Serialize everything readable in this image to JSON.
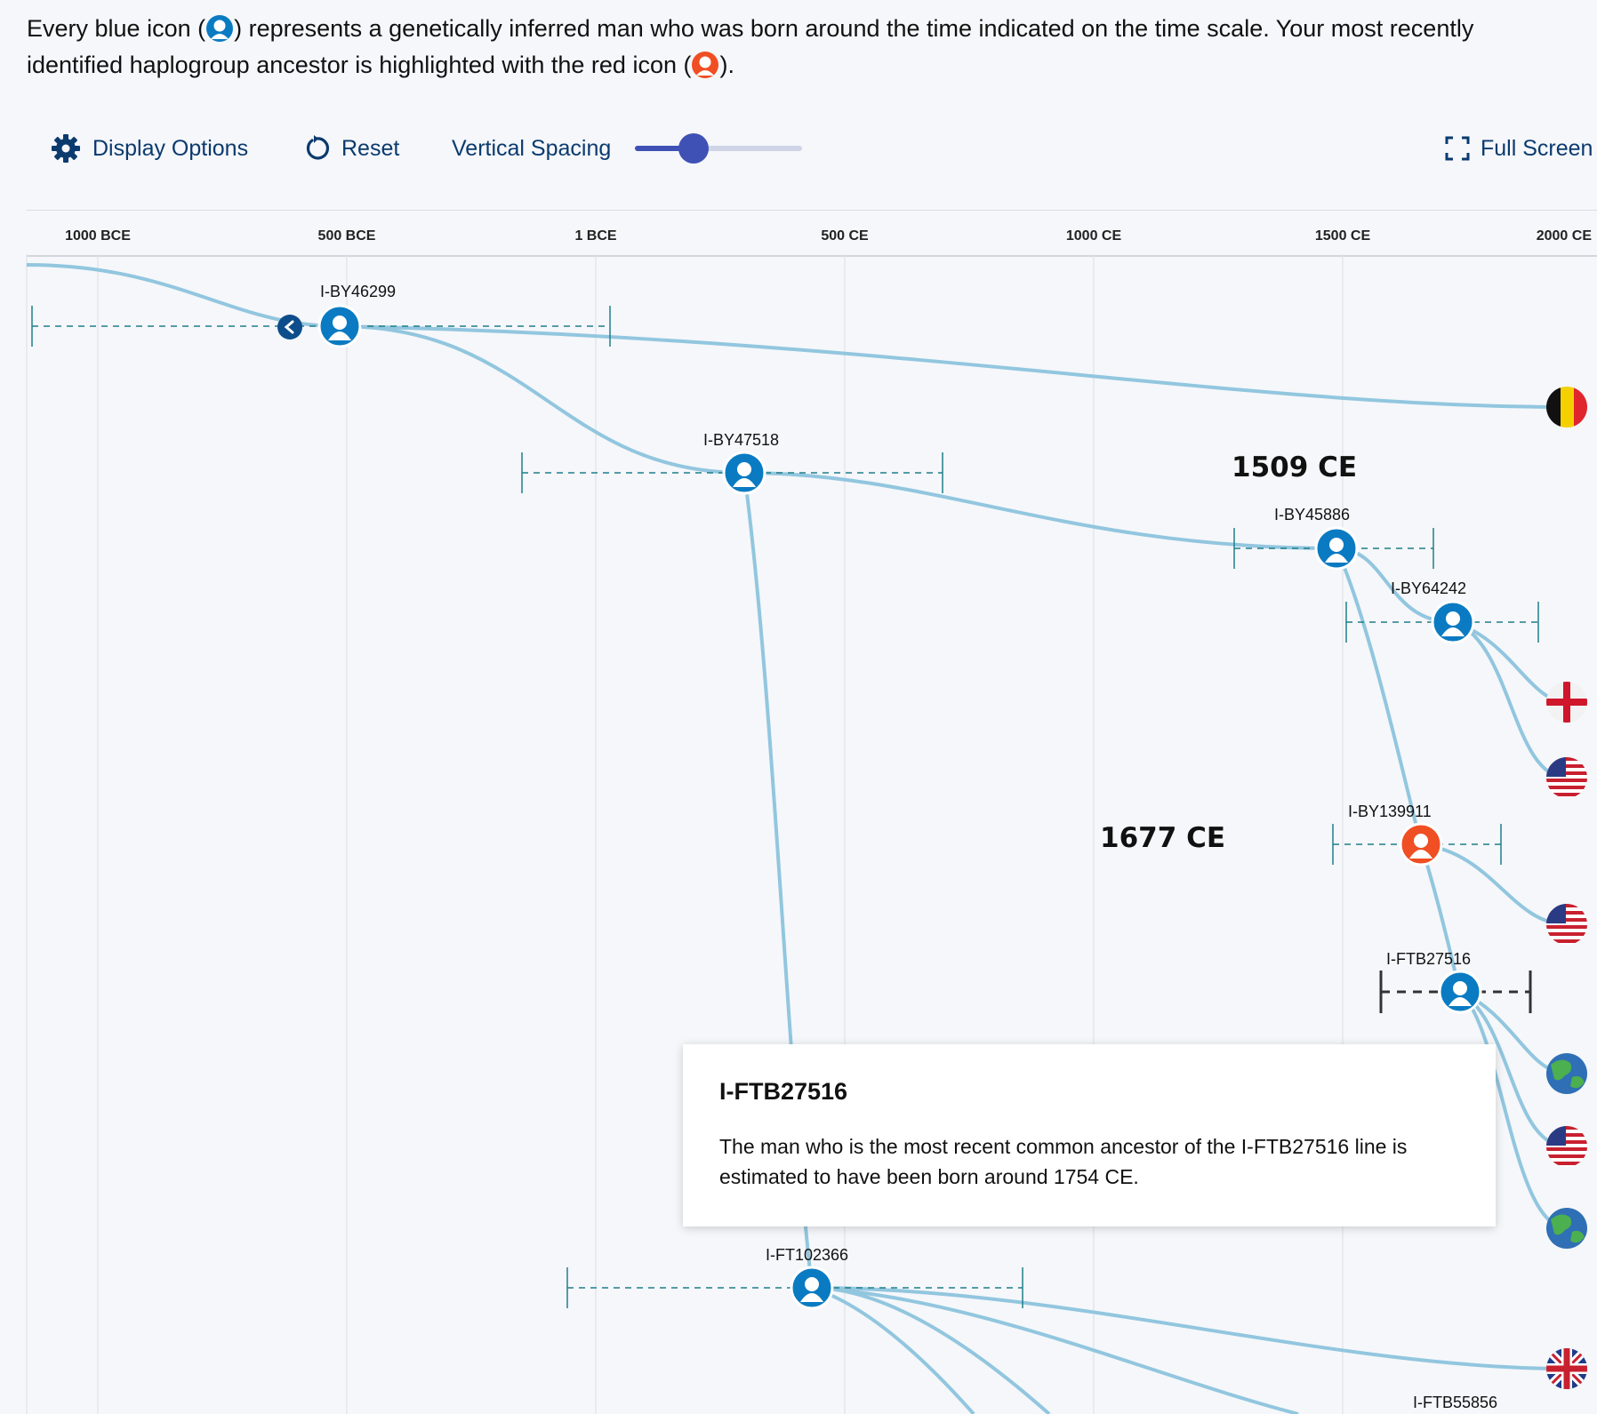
{
  "intro": {
    "part1": "Every blue icon (",
    "part2": ") represents a genetically inferred man who was born around the time indicated on the time scale. Your most recently identified haplogroup ancestor is highlighted with the red icon (",
    "part3": ")."
  },
  "toolbar": {
    "display_options": "Display Options",
    "reset": "Reset",
    "vertical_spacing": "Vertical Spacing",
    "vertical_spacing_value": 0.35,
    "full_screen": "Full Screen"
  },
  "timescale": {
    "ticks": [
      "1000 BCE",
      "500 BCE",
      "1 BCE",
      "500 CE",
      "1000 CE",
      "1500 CE",
      "2000 CE"
    ]
  },
  "colors": {
    "node_blue": "#0a7bc2",
    "node_red": "#f04e23",
    "line": "#92c6df",
    "accent": "#3f51b5"
  },
  "tree": {
    "nodes": [
      {
        "id": "I-BY46299",
        "year": -760,
        "range": [
          -1262,
          -60
        ],
        "type": "blue"
      },
      {
        "id": "I-BY47518",
        "year": 290,
        "range": [
          -157,
          693
        ],
        "type": "blue"
      },
      {
        "id": "I-BY45886",
        "year": 1509,
        "range": [
          1296,
          1698
        ],
        "type": "blue"
      },
      {
        "id": "I-BY64242",
        "year": 1737,
        "range": [
          1524,
          1900
        ],
        "type": "blue"
      },
      {
        "id": "I-BY139911",
        "year": 1677,
        "range": [
          1479,
          1820
        ],
        "type": "red"
      },
      {
        "id": "I-FTB27516",
        "year": 1754,
        "range": [
          1600,
          1900
        ],
        "type": "blue"
      },
      {
        "id": "I-FT102366",
        "year": 427,
        "range": [
          -55,
          850
        ],
        "type": "blue"
      },
      {
        "id": "I-FTB55856",
        "year": 1900,
        "range": [
          1800,
          1990
        ],
        "type": "blue"
      }
    ],
    "date_labels": [
      "1509 CE",
      "1677 CE"
    ],
    "flags": [
      "belgium-flag",
      "england-flag",
      "usa-flag",
      "usa-flag",
      "globe",
      "usa-flag",
      "globe",
      "uk-flag"
    ]
  },
  "popup": {
    "title": "I-FTB27516",
    "text": "The man who is the most recent common ancestor of the I-FTB27516 line is estimated to have been born around 1754 CE."
  }
}
